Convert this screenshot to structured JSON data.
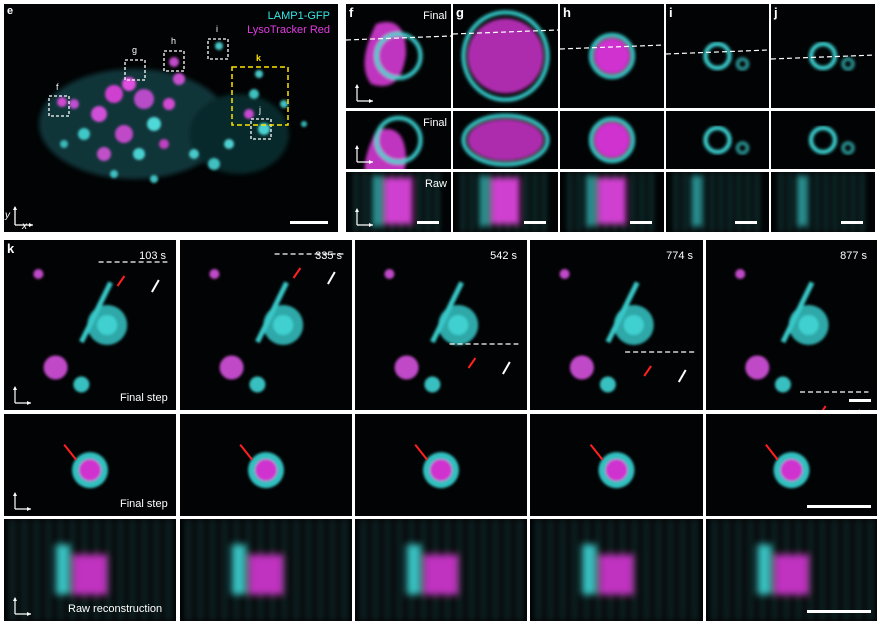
{
  "panel_e": {
    "label": "e",
    "legend": [
      "LAMP1-GFP",
      "LysoTracker Red"
    ],
    "roi_labels": [
      "f",
      "g",
      "h",
      "i",
      "j",
      "k"
    ]
  },
  "panels_fj": [
    {
      "label": "f"
    },
    {
      "label": "g"
    },
    {
      "label": "h"
    },
    {
      "label": "i"
    },
    {
      "label": "j"
    }
  ],
  "row_labels_fj": [
    "Final",
    "Final",
    "Raw"
  ],
  "panel_k": {
    "label": "k",
    "times": [
      "103 s",
      "335 s",
      "542 s",
      "774 s",
      "877 s"
    ],
    "row_labels": [
      "Final step",
      "Final step",
      "Raw reconstruction"
    ]
  },
  "axes": {
    "x": "x",
    "y": "y",
    "z": "z"
  },
  "colors": {
    "cyan": "#36e6e6",
    "magenta": "#e23ce2",
    "arrow_red": "#ff2020",
    "arrow_white": "#ffffff",
    "roi_yellow": "#ffe300"
  }
}
